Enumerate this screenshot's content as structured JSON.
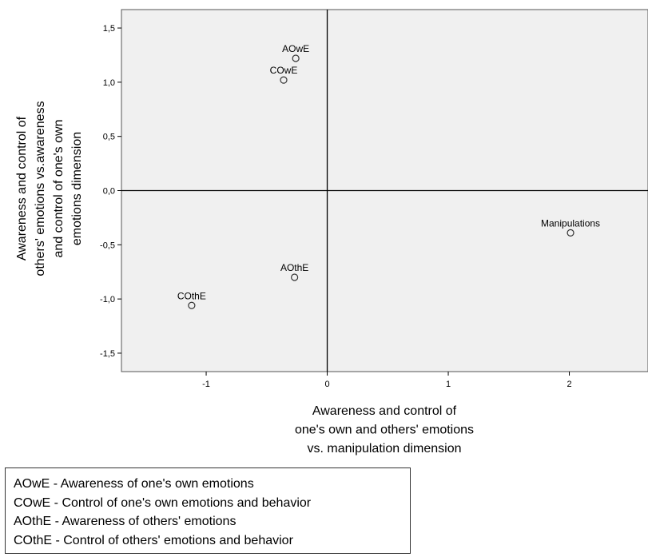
{
  "chart_data": {
    "type": "scatter",
    "title": "",
    "xlabel_lines": [
      "Awareness and control of",
      "one's own and others' emotions",
      "vs. manipulation dimension"
    ],
    "ylabel_lines": [
      "Awareness and control of",
      "others' emotions vs.awareness",
      "and control of one's own",
      "emotions dimension"
    ],
    "xlim": [
      -1.7,
      2.65
    ],
    "ylim": [
      -1.67,
      1.67
    ],
    "x_ticks": [
      {
        "value": -1,
        "label": "-1"
      },
      {
        "value": 0,
        "label": "0"
      },
      {
        "value": 1,
        "label": "1"
      },
      {
        "value": 2,
        "label": "2"
      }
    ],
    "y_ticks": [
      {
        "value": 1.5,
        "label": "1,5"
      },
      {
        "value": 1.0,
        "label": "1,0"
      },
      {
        "value": 0.5,
        "label": "0,5"
      },
      {
        "value": 0.0,
        "label": "0,0"
      },
      {
        "value": -0.5,
        "label": "-0,5"
      },
      {
        "value": -1.0,
        "label": "-1,0"
      },
      {
        "value": -1.5,
        "label": "-1,5"
      }
    ],
    "reference_lines": {
      "x": 0,
      "y": 0
    },
    "grid": false,
    "points": [
      {
        "label": "AOwE",
        "x": -0.26,
        "y": 1.22
      },
      {
        "label": "COwE",
        "x": -0.36,
        "y": 1.02
      },
      {
        "label": "Manipulations",
        "x": 2.01,
        "y": -0.39
      },
      {
        "label": "AOthE",
        "x": -0.27,
        "y": -0.8
      },
      {
        "label": "COthE",
        "x": -1.12,
        "y": -1.06
      }
    ],
    "colors": {
      "plot_background": "#f0f0f0",
      "marker_stroke": "#333333",
      "axis": "#000000"
    }
  },
  "legend": {
    "items": [
      "AOwE - Awareness of one's own emotions",
      "COwE - Control of one's own emotions and behavior",
      "AOthE - Awareness of others' emotions",
      "COthE - Control of others' emotions and behavior"
    ]
  }
}
